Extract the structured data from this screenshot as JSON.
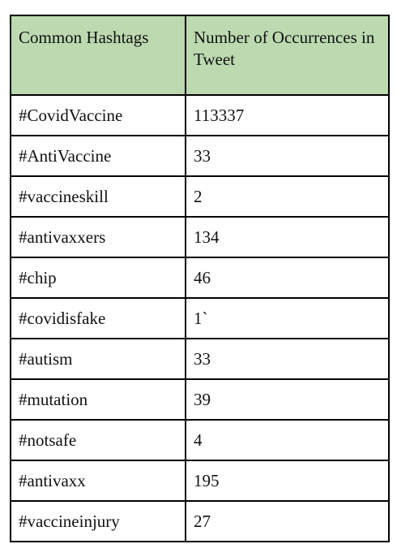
{
  "table": {
    "headers": [
      "Common Hashtags",
      "Number of Occurrences in Tweet"
    ],
    "rows": [
      [
        "#CovidVaccine",
        "113337"
      ],
      [
        "#AntiVaccine",
        "33"
      ],
      [
        "#vaccineskill",
        "2"
      ],
      [
        "#antivaxxers",
        "134"
      ],
      [
        "#chip",
        "46"
      ],
      [
        "#covidisfake",
        "1`"
      ],
      [
        "#autism",
        "33"
      ],
      [
        "#mutation",
        "39"
      ],
      [
        "#notsafe",
        "4"
      ],
      [
        "#antivaxx",
        "195"
      ],
      [
        "#vaccineinjury",
        "27"
      ]
    ]
  },
  "colors": {
    "header_background": "#bcd9b0",
    "border": "#000000"
  }
}
